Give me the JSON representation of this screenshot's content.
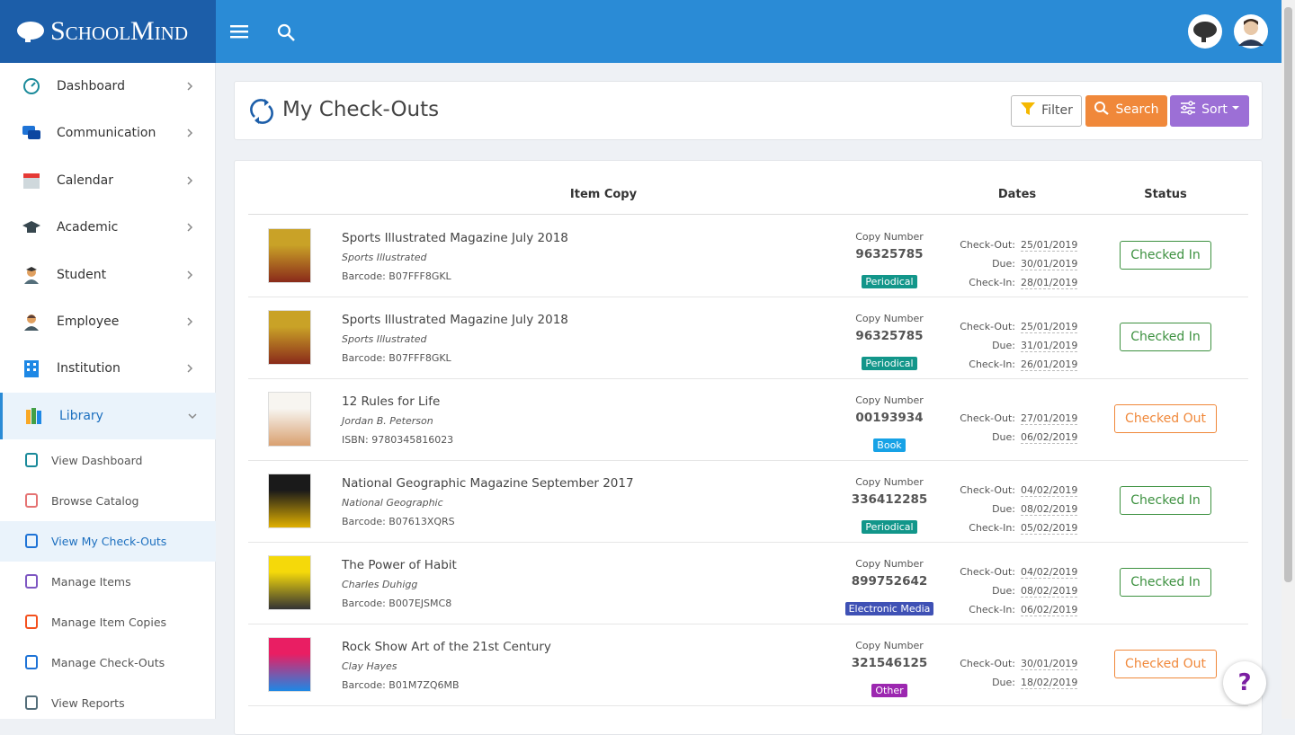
{
  "brand": "SchoolMind",
  "sidebar": {
    "menu": [
      "Dashboard",
      "Communication",
      "Calendar",
      "Academic",
      "Student",
      "Employee",
      "Institution",
      "Library"
    ],
    "submenu": [
      "View Dashboard",
      "Browse Catalog",
      "View My Check-Outs",
      "Manage Items",
      "Manage Item Copies",
      "Manage Check-Outs",
      "View Reports"
    ]
  },
  "page": {
    "title": "My Check-Outs",
    "buttons": [
      "Filter",
      "Search",
      "Sort"
    ]
  },
  "table": {
    "headers": [
      "Item Copy",
      "Dates",
      "Status"
    ],
    "copy_number_label": "Copy Number",
    "rows": [
      {
        "title": "Sports Illustrated Magazine July 2018",
        "author": "Sports Illustrated",
        "code": "Barcode: B07FFF8GKL",
        "copy_number": "96325785",
        "type": "Periodical",
        "badge_color": "#12968a",
        "dates": [
          [
            "Check-Out:",
            "25/01/2019"
          ],
          [
            "Due:",
            "30/01/2019"
          ],
          [
            "Check-In:",
            "28/01/2019"
          ]
        ],
        "status": "Checked In",
        "status_color": "#3d9140"
      },
      {
        "title": "Sports Illustrated Magazine July 2018",
        "author": "Sports Illustrated",
        "code": "Barcode: B07FFF8GKL",
        "copy_number": "96325785",
        "type": "Periodical",
        "badge_color": "#12968a",
        "dates": [
          [
            "Check-Out:",
            "25/01/2019"
          ],
          [
            "Due:",
            "31/01/2019"
          ],
          [
            "Check-In:",
            "26/01/2019"
          ]
        ],
        "status": "Checked In",
        "status_color": "#3d9140"
      },
      {
        "title": "12 Rules for Life",
        "author": "Jordan B. Peterson",
        "code": "ISBN: 9780345816023",
        "copy_number": "00193934",
        "type": "Book",
        "badge_color": "#17a2e6",
        "dates": [
          [
            "Check-Out:",
            "27/01/2019"
          ],
          [
            "Due:",
            "06/02/2019"
          ]
        ],
        "status": "Checked Out",
        "status_color": "#f0883a"
      },
      {
        "title": "National Geographic Magazine September 2017",
        "author": "National Geographic",
        "code": "Barcode: B07613XQRS",
        "copy_number": "336412285",
        "type": "Periodical",
        "badge_color": "#12968a",
        "dates": [
          [
            "Check-Out:",
            "04/02/2019"
          ],
          [
            "Due:",
            "08/02/2019"
          ],
          [
            "Check-In:",
            "05/02/2019"
          ]
        ],
        "status": "Checked In",
        "status_color": "#3d9140"
      },
      {
        "title": "The Power of Habit",
        "author": "Charles Duhigg",
        "code": "Barcode: B007EJSMC8",
        "copy_number": "899752642",
        "type": "Electronic Media",
        "badge_color": "#3f51b5",
        "dates": [
          [
            "Check-Out:",
            "04/02/2019"
          ],
          [
            "Due:",
            "08/02/2019"
          ],
          [
            "Check-In:",
            "06/02/2019"
          ]
        ],
        "status": "Checked In",
        "status_color": "#3d9140"
      },
      {
        "title": "Rock Show Art of the 21st Century",
        "author": "Clay Hayes",
        "code": "Barcode: B01M7ZQ6MB",
        "copy_number": "321546125",
        "type": "Other",
        "badge_color": "#9c27b0",
        "dates": [
          [
            "Check-Out:",
            "30/01/2019"
          ],
          [
            "Due:",
            "18/02/2019"
          ]
        ],
        "status": "Checked Out",
        "status_color": "#f0883a"
      }
    ]
  },
  "help": "?"
}
